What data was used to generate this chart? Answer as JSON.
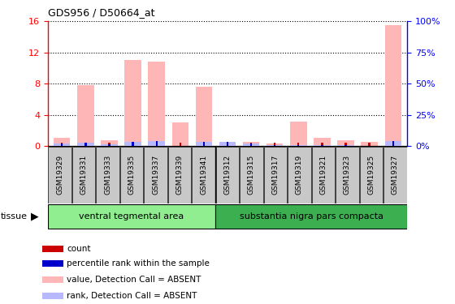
{
  "title": "GDS956 / D50664_at",
  "samples": [
    "GSM19329",
    "GSM19331",
    "GSM19333",
    "GSM19335",
    "GSM19337",
    "GSM19339",
    "GSM19341",
    "GSM19312",
    "GSM19315",
    "GSM19317",
    "GSM19319",
    "GSM19321",
    "GSM19323",
    "GSM19325",
    "GSM19327"
  ],
  "absent_value_bars": [
    1.0,
    7.8,
    0.7,
    11.0,
    10.8,
    3.0,
    7.6,
    0.4,
    0.5,
    0.3,
    3.1,
    1.0,
    0.7,
    0.5,
    15.5
  ],
  "absent_rank_bars": [
    2.0,
    2.8,
    1.5,
    3.5,
    3.7,
    0.3,
    3.3,
    3.3,
    1.8,
    0.5,
    0.5,
    0.5,
    0.5,
    0.3,
    4.2
  ],
  "count_values": [
    0.4,
    0.4,
    0.4,
    0.4,
    0.4,
    0.4,
    0.4,
    0.4,
    0.4,
    0.4,
    0.4,
    0.4,
    0.4,
    0.4,
    0.4
  ],
  "rank_values": [
    2.0,
    2.8,
    1.5,
    3.5,
    3.7,
    0.3,
    3.3,
    3.3,
    1.8,
    0.5,
    0.5,
    0.5,
    0.5,
    0.3,
    4.2
  ],
  "group1_count": 7,
  "group2_count": 8,
  "group1_label": "ventral tegmental area",
  "group2_label": "substantia nigra pars compacta",
  "group1_color": "#90ee90",
  "group2_color": "#3cb050",
  "ylim_left": [
    0,
    16
  ],
  "ylim_right": [
    0,
    100
  ],
  "yticks_left": [
    0,
    4,
    8,
    12,
    16
  ],
  "yticks_right": [
    0,
    25,
    50,
    75,
    100
  ],
  "ytick_labels_right": [
    "0%",
    "25%",
    "50%",
    "75%",
    "100%"
  ],
  "color_count": "#cc0000",
  "color_rank": "#0000cc",
  "color_absent_value": "#ffb6b6",
  "color_absent_rank": "#b8b8ff",
  "tick_bg_color": "#c8c8c8",
  "legend_items": [
    {
      "color": "#cc0000",
      "label": "count"
    },
    {
      "color": "#0000cc",
      "label": "percentile rank within the sample"
    },
    {
      "color": "#ffb6b6",
      "label": "value, Detection Call = ABSENT"
    },
    {
      "color": "#b8b8ff",
      "label": "rank, Detection Call = ABSENT"
    }
  ]
}
